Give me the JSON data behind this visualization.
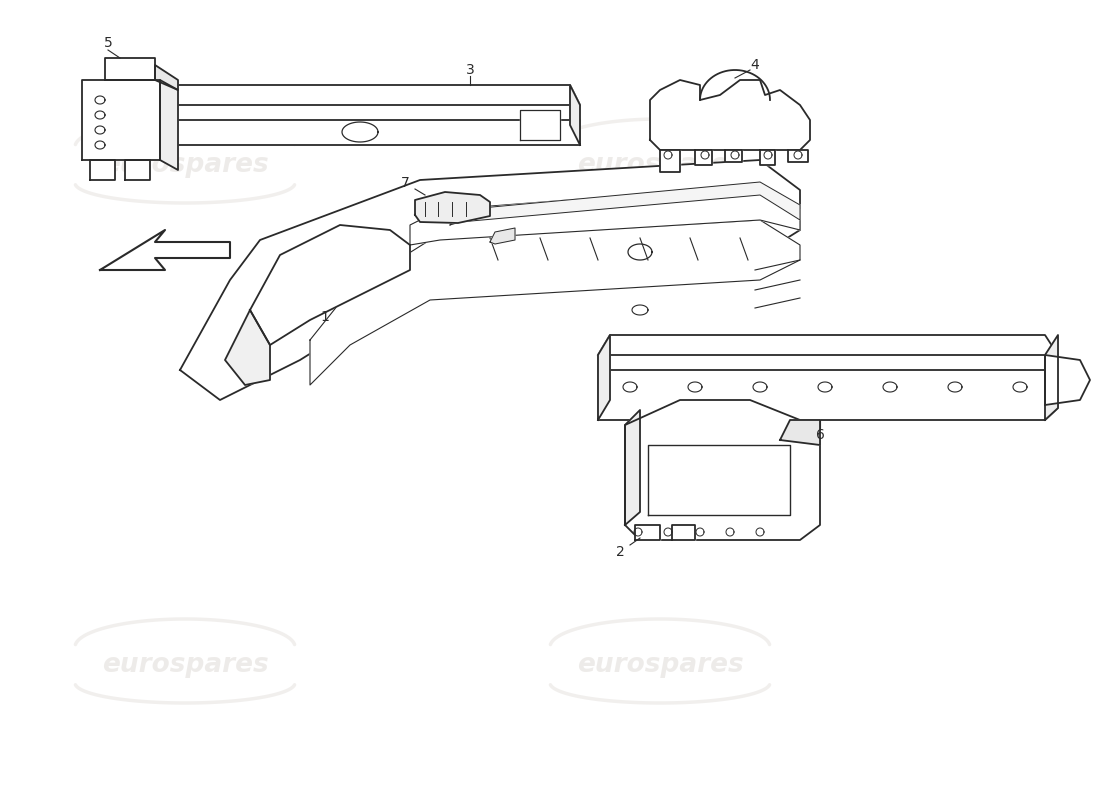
{
  "background_color": "#ffffff",
  "line_color": "#2a2a2a",
  "watermark_color": "#c8c0b8",
  "watermark_text": "eurospares",
  "part_labels": [
    "1",
    "2",
    "3",
    "4",
    "5",
    "6",
    "7"
  ]
}
